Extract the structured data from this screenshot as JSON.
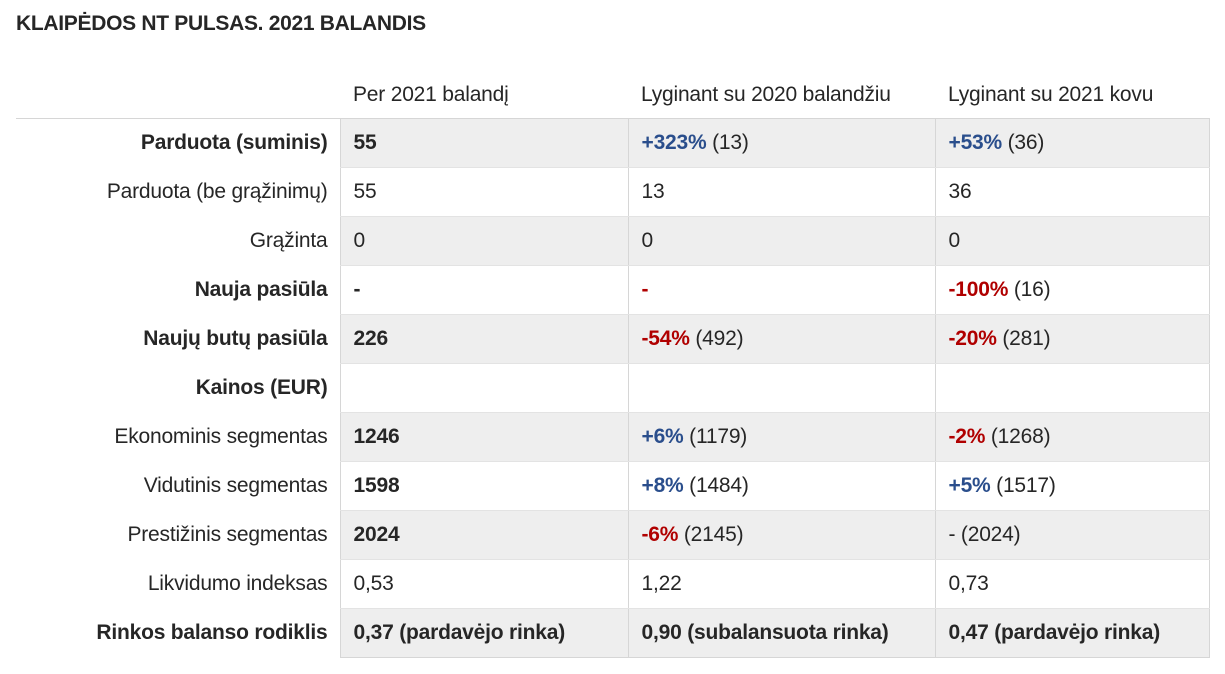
{
  "title": "KLAIPĖDOS NT PULSAS. 2021 BALANDIS",
  "table": {
    "headers": [
      "",
      "Per 2021 balandį",
      "Lyginant su 2020 balandžiu",
      "Lyginant su 2021 kovu"
    ],
    "rows": [
      {
        "label": "Parduota (suminis)",
        "bold": true,
        "current": {
          "main": "55",
          "style": "b",
          "rest": ""
        },
        "vs_year": {
          "main": "+323%",
          "style": "pos",
          "rest": " (13)"
        },
        "vs_month": {
          "main": "+53%",
          "style": "pos",
          "rest": " (36)"
        }
      },
      {
        "label": "Parduota (be grąžinimų)",
        "bold": false,
        "current": {
          "main": "55",
          "style": "",
          "rest": ""
        },
        "vs_year": {
          "main": "13",
          "style": "",
          "rest": ""
        },
        "vs_month": {
          "main": "36",
          "style": "",
          "rest": ""
        }
      },
      {
        "label": "Grąžinta",
        "bold": false,
        "current": {
          "main": "0",
          "style": "",
          "rest": ""
        },
        "vs_year": {
          "main": "0",
          "style": "",
          "rest": ""
        },
        "vs_month": {
          "main": "0",
          "style": "",
          "rest": ""
        }
      },
      {
        "label": "Nauja pasiūla",
        "bold": true,
        "current": {
          "main": "-",
          "style": "b",
          "rest": ""
        },
        "vs_year": {
          "main": "-",
          "style": "neg",
          "rest": ""
        },
        "vs_month": {
          "main": "-100%",
          "style": "neg",
          "rest": " (16)"
        }
      },
      {
        "label": "Naujų butų pasiūla",
        "bold": true,
        "current": {
          "main": "226",
          "style": "b",
          "rest": ""
        },
        "vs_year": {
          "main": "-54%",
          "style": "neg",
          "rest": " (492)"
        },
        "vs_month": {
          "main": "-20%",
          "style": "neg",
          "rest": " (281)"
        }
      },
      {
        "label": "Kainos (EUR)",
        "bold": true,
        "current": {
          "main": "",
          "style": "",
          "rest": ""
        },
        "vs_year": {
          "main": "",
          "style": "",
          "rest": ""
        },
        "vs_month": {
          "main": "",
          "style": "",
          "rest": ""
        }
      },
      {
        "label": "Ekonominis segmentas",
        "bold": false,
        "current": {
          "main": "1246",
          "style": "b",
          "rest": ""
        },
        "vs_year": {
          "main": "+6%",
          "style": "pos",
          "rest": " (1179)"
        },
        "vs_month": {
          "main": "-2%",
          "style": "neg",
          "rest": " (1268)"
        }
      },
      {
        "label": "Vidutinis segmentas",
        "bold": false,
        "current": {
          "main": "1598",
          "style": "b",
          "rest": ""
        },
        "vs_year": {
          "main": "+8%",
          "style": "pos",
          "rest": " (1484)"
        },
        "vs_month": {
          "main": "+5%",
          "style": "pos",
          "rest": " (1517)"
        }
      },
      {
        "label": "Prestižinis segmentas",
        "bold": false,
        "current": {
          "main": "2024",
          "style": "b",
          "rest": ""
        },
        "vs_year": {
          "main": "-6%",
          "style": "neg",
          "rest": " (2145)"
        },
        "vs_month": {
          "main": "-",
          "style": "",
          "rest": " (2024)"
        }
      },
      {
        "label": "Likvidumo indeksas",
        "bold": false,
        "current": {
          "main": "0,53",
          "style": "",
          "rest": ""
        },
        "vs_year": {
          "main": "1,22",
          "style": "",
          "rest": ""
        },
        "vs_month": {
          "main": "0,73",
          "style": "",
          "rest": ""
        }
      },
      {
        "label": "Rinkos balanso rodiklis",
        "bold": true,
        "current": {
          "main": "0,37 (pardavėjo rinka)",
          "style": "b",
          "rest": ""
        },
        "vs_year": {
          "main": "0,90 (subalansuota rinka)",
          "style": "b",
          "rest": ""
        },
        "vs_month": {
          "main": "0,47 (pardavėjo rinka)",
          "style": "b",
          "rest": ""
        }
      }
    ]
  },
  "colors": {
    "positive": "#2a4e8c",
    "negative": "#b00000",
    "stripe": "#eeeeee",
    "text": "#262626"
  }
}
